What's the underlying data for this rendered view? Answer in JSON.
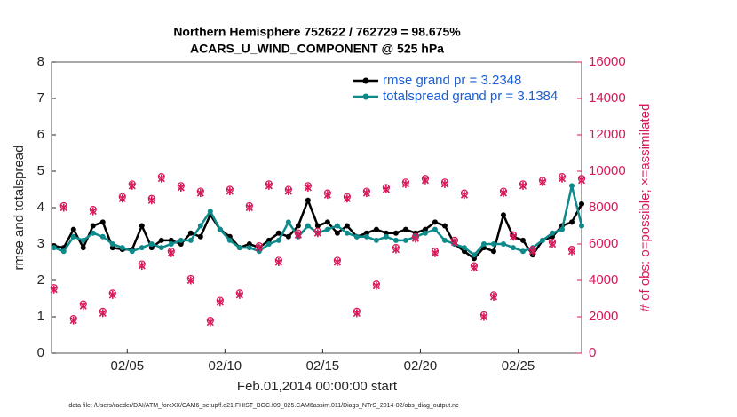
{
  "chart_data": {
    "type": "line",
    "title": "Northern Hemisphere 752622 / 762729 = 98.675%",
    "subtitle": "ACARS_U_WIND_COMPONENT @ 525 hPa",
    "xlabel": "Feb.01,2014 00:00:00 start",
    "ylabel": "rmse and totalspread",
    "y2label": "# of obs: o=possible; ×=assimilated",
    "footnote": "data file: /Users/raeder/DAI/ATM_forcXX/CAM6_setup/f.e21.FHIST_BGC.f09_025.CAM6assim.011/Diags_NTrS_2014-02/obs_diag_output.nc",
    "x": [
      1.25,
      1.75,
      2.25,
      2.75,
      3.25,
      3.75,
      4.25,
      4.75,
      5.25,
      5.75,
      6.25,
      6.75,
      7.25,
      7.75,
      8.25,
      8.75,
      9.25,
      9.75,
      10.25,
      10.75,
      11.25,
      11.75,
      12.25,
      12.75,
      13.25,
      13.75,
      14.25,
      14.75,
      15.25,
      15.75,
      16.25,
      16.75,
      17.25,
      17.75,
      18.25,
      18.75,
      19.25,
      19.75,
      20.25,
      20.75,
      21.25,
      21.75,
      22.25,
      22.75,
      23.25,
      23.75,
      24.25,
      24.75,
      25.25,
      25.75,
      26.25,
      26.75,
      27.25,
      27.75,
      28.25
    ],
    "xlim": [
      1.125,
      28.25
    ],
    "xticks": [
      {
        "value": 5,
        "label": "02/05"
      },
      {
        "value": 10,
        "label": "02/10"
      },
      {
        "value": 15,
        "label": "02/15"
      },
      {
        "value": 20,
        "label": "02/20"
      },
      {
        "value": 25,
        "label": "02/25"
      }
    ],
    "ylim": [
      0,
      8
    ],
    "yticks": [
      0,
      1,
      2,
      3,
      4,
      5,
      6,
      7,
      8
    ],
    "y2lim": [
      0,
      16000
    ],
    "y2ticks": [
      0,
      2000,
      4000,
      6000,
      8000,
      10000,
      12000,
      14000,
      16000
    ],
    "legend": "upper right",
    "series": [
      {
        "name": "rmse grand pr = 3.2348",
        "color": "#000000",
        "marker": "dot",
        "values": [
          2.95,
          2.9,
          3.4,
          2.9,
          3.5,
          3.6,
          2.9,
          2.85,
          2.85,
          3.5,
          2.9,
          3.1,
          3.1,
          3.0,
          3.3,
          3.2,
          3.8,
          3.4,
          3.2,
          2.9,
          3.0,
          2.9,
          3.1,
          3.3,
          3.2,
          3.5,
          4.2,
          3.5,
          3.6,
          3.3,
          3.5,
          3.2,
          3.3,
          3.4,
          3.3,
          3.3,
          3.4,
          3.3,
          3.4,
          3.6,
          3.5,
          3.0,
          2.8,
          2.6,
          2.9,
          2.8,
          3.8,
          3.2,
          3.1,
          2.7,
          3.1,
          3.2,
          3.5,
          3.6,
          4.1
        ]
      },
      {
        "name": "totalspread grand pr = 3.1384",
        "color": "#0f8a8a",
        "marker": "dot",
        "values": [
          2.9,
          2.8,
          3.2,
          3.1,
          3.3,
          3.2,
          3.0,
          2.9,
          2.8,
          2.9,
          3.0,
          2.9,
          3.0,
          3.1,
          3.1,
          3.5,
          3.9,
          3.4,
          3.1,
          2.9,
          2.9,
          2.8,
          3.0,
          3.1,
          3.6,
          3.2,
          3.5,
          3.3,
          3.4,
          3.5,
          3.3,
          3.2,
          3.2,
          3.1,
          3.2,
          3.1,
          3.1,
          3.2,
          3.3,
          3.4,
          3.1,
          3.0,
          2.9,
          2.7,
          3.0,
          3.0,
          3.0,
          2.9,
          2.8,
          2.9,
          3.1,
          3.3,
          3.4,
          4.6,
          3.5
        ]
      },
      {
        "color": "#d6195a",
        "marker": "circle",
        "axis": "y2",
        "values": [
          3600,
          8100,
          1900,
          2700,
          7900,
          2300,
          3300,
          8600,
          9300,
          4900,
          8500,
          9700,
          5600,
          9200,
          4100,
          8900,
          1800,
          2900,
          9000,
          3300,
          8100,
          5900,
          9300,
          5100,
          9000,
          6600,
          9200,
          6700,
          8800,
          5100,
          8600,
          2300,
          8900,
          3800,
          9100,
          5800,
          9400,
          6400,
          9600,
          5600,
          9400,
          6200,
          8800,
          4800,
          2100,
          3200,
          8900,
          6500,
          9300,
          5700,
          9500,
          6100,
          9700,
          5700,
          9600
        ]
      },
      {
        "color": "#d6195a",
        "marker": "x",
        "axis": "y2",
        "values": [
          3500,
          8000,
          1800,
          2600,
          7800,
          2200,
          3200,
          8500,
          9200,
          4800,
          8400,
          9600,
          5500,
          9100,
          4000,
          8800,
          1700,
          2800,
          8900,
          3200,
          8000,
          5800,
          9200,
          5000,
          8900,
          6500,
          9100,
          6600,
          8700,
          5000,
          8500,
          2200,
          8800,
          3700,
          9000,
          5700,
          9300,
          6300,
          9500,
          5500,
          9300,
          6100,
          8700,
          4700,
          2000,
          3100,
          8800,
          6400,
          9200,
          5600,
          9400,
          6000,
          9600,
          5600,
          9500
        ]
      }
    ]
  }
}
